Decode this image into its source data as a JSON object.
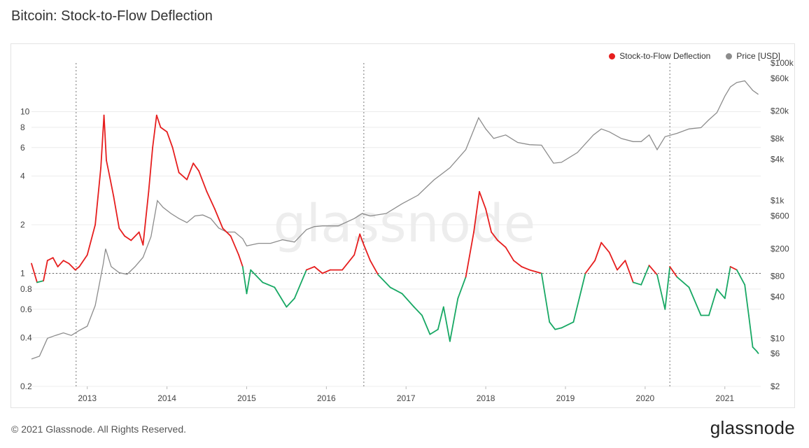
{
  "header": {
    "title": "Bitcoin: Stock-to-Flow Deflection"
  },
  "footer": {
    "copyright": "© 2021 Glassnode. All Rights Reserved.",
    "brand": "glassnode"
  },
  "watermark": "glassnode",
  "colors": {
    "deflection_above": "#e61e1e",
    "deflection_below": "#18a864",
    "price": "#8c8c8c"
  },
  "chart_data": {
    "type": "line",
    "title": "Bitcoin: Stock-to-Flow Deflection",
    "legend_position": "top-right",
    "legend": [
      {
        "name": "Stock-to-Flow Deflection",
        "color": "#e61e1e"
      },
      {
        "name": "Price [USD]",
        "color": "#8c8c8c"
      }
    ],
    "x_range": [
      2012.35,
      2021.5
    ],
    "x_ticks": [
      "2013",
      "2014",
      "2015",
      "2016",
      "2017",
      "2018",
      "2019",
      "2020",
      "2021"
    ],
    "y_left": {
      "scale": "log",
      "range": [
        0.2,
        20
      ],
      "ticks": [
        "10",
        "8",
        "6",
        "4",
        "2",
        "1",
        "0.8",
        "0.6",
        "0.4",
        "0.2"
      ],
      "reference_line": 1
    },
    "y_right": {
      "scale": "log",
      "range": [
        2,
        100000
      ],
      "ticks": [
        "$100k",
        "$60k",
        "$20k",
        "$8k",
        "$4k",
        "$1k",
        "$600",
        "$200",
        "$80",
        "$40",
        "$10",
        "$6",
        "$2"
      ]
    },
    "halving_lines": [
      2012.91,
      2016.52,
      2020.36
    ],
    "series": [
      {
        "name": "Stock-to-Flow Deflection",
        "x": [
          2012.35,
          2012.42,
          2012.5,
          2012.55,
          2012.62,
          2012.68,
          2012.75,
          2012.82,
          2012.9,
          2012.95,
          2013.05,
          2013.15,
          2013.22,
          2013.26,
          2013.29,
          2013.33,
          2013.38,
          2013.45,
          2013.52,
          2013.6,
          2013.7,
          2013.75,
          2013.82,
          2013.87,
          2013.92,
          2013.97,
          2014.05,
          2014.12,
          2014.2,
          2014.3,
          2014.38,
          2014.45,
          2014.55,
          2014.65,
          2014.75,
          2014.85,
          2014.95,
          2015.0,
          2015.05,
          2015.1,
          2015.25,
          2015.4,
          2015.55,
          2015.65,
          2015.8,
          2015.9,
          2016.0,
          2016.1,
          2016.25,
          2016.4,
          2016.47,
          2016.52,
          2016.6,
          2016.7,
          2016.85,
          2017.0,
          2017.15,
          2017.25,
          2017.35,
          2017.45,
          2017.52,
          2017.6,
          2017.7,
          2017.8,
          2017.9,
          2017.97,
          2018.05,
          2018.12,
          2018.2,
          2018.3,
          2018.4,
          2018.5,
          2018.6,
          2018.75,
          2018.85,
          2018.92,
          2019.0,
          2019.15,
          2019.3,
          2019.42,
          2019.5,
          2019.6,
          2019.7,
          2019.8,
          2019.9,
          2020.0,
          2020.1,
          2020.2,
          2020.3,
          2020.36,
          2020.45,
          2020.6,
          2020.75,
          2020.85,
          2020.95,
          2021.05,
          2021.12,
          2021.2,
          2021.3,
          2021.35,
          2021.4,
          2021.45,
          2021.47
        ],
        "y": [
          1.15,
          0.88,
          0.9,
          1.2,
          1.25,
          1.1,
          1.2,
          1.15,
          1.05,
          1.1,
          1.3,
          2.0,
          4.5,
          9.5,
          5.0,
          4.0,
          3.0,
          1.9,
          1.7,
          1.6,
          1.8,
          1.5,
          3.2,
          6.0,
          9.5,
          8.0,
          7.5,
          6.0,
          4.2,
          3.8,
          4.8,
          4.3,
          3.2,
          2.5,
          1.9,
          1.7,
          1.3,
          1.1,
          0.75,
          1.05,
          0.88,
          0.82,
          0.62,
          0.7,
          1.05,
          1.1,
          1.0,
          1.05,
          1.05,
          1.3,
          1.75,
          1.5,
          1.2,
          0.98,
          0.82,
          0.75,
          0.62,
          0.55,
          0.42,
          0.45,
          0.62,
          0.38,
          0.7,
          0.95,
          1.8,
          3.2,
          2.5,
          1.8,
          1.6,
          1.45,
          1.2,
          1.1,
          1.05,
          1.0,
          0.5,
          0.45,
          0.46,
          0.5,
          1.0,
          1.2,
          1.55,
          1.35,
          1.05,
          1.2,
          0.88,
          0.85,
          1.12,
          0.98,
          0.6,
          1.1,
          0.95,
          0.82,
          0.55,
          0.55,
          0.8,
          0.7,
          1.1,
          1.05,
          0.85,
          0.55,
          0.35,
          0.33,
          0.32
        ]
      },
      {
        "name": "Price [USD]",
        "x": [
          2012.35,
          2012.45,
          2012.55,
          2012.65,
          2012.75,
          2012.85,
          2012.95,
          2013.05,
          2013.15,
          2013.25,
          2013.28,
          2013.35,
          2013.45,
          2013.55,
          2013.65,
          2013.75,
          2013.85,
          2013.93,
          2014.0,
          2014.1,
          2014.2,
          2014.3,
          2014.4,
          2014.5,
          2014.6,
          2014.7,
          2014.8,
          2014.9,
          2015.0,
          2015.05,
          2015.2,
          2015.35,
          2015.5,
          2015.65,
          2015.8,
          2015.9,
          2016.0,
          2016.2,
          2016.4,
          2016.5,
          2016.6,
          2016.8,
          2017.0,
          2017.2,
          2017.4,
          2017.6,
          2017.8,
          2017.96,
          2018.05,
          2018.15,
          2018.3,
          2018.45,
          2018.6,
          2018.75,
          2018.9,
          2019.0,
          2019.2,
          2019.4,
          2019.5,
          2019.6,
          2019.75,
          2019.9,
          2020.0,
          2020.1,
          2020.2,
          2020.3,
          2020.45,
          2020.6,
          2020.75,
          2020.85,
          2020.95,
          2021.05,
          2021.12,
          2021.2,
          2021.3,
          2021.4,
          2021.47
        ],
        "y": [
          5,
          5.5,
          10,
          11,
          12,
          11,
          13,
          15,
          30,
          120,
          200,
          110,
          90,
          85,
          110,
          150,
          300,
          1000,
          800,
          650,
          550,
          480,
          600,
          620,
          550,
          400,
          350,
          350,
          280,
          220,
          240,
          240,
          270,
          250,
          380,
          420,
          430,
          430,
          550,
          650,
          600,
          650,
          900,
          1200,
          2000,
          3000,
          5500,
          16000,
          11000,
          8000,
          9000,
          7000,
          6500,
          6400,
          3500,
          3600,
          5000,
          9000,
          11000,
          10000,
          8000,
          7200,
          7200,
          9000,
          5500,
          8500,
          9500,
          11000,
          11500,
          15000,
          19000,
          33000,
          45000,
          52000,
          55000,
          40000,
          35000
        ]
      }
    ]
  }
}
